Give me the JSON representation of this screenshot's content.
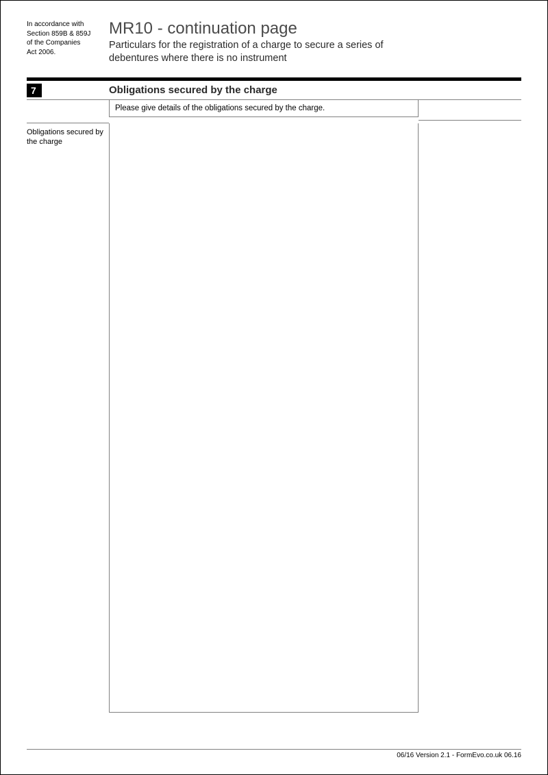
{
  "header": {
    "legal_note_line1": "In accordance with",
    "legal_note_line2": "Section 859B & 859J",
    "legal_note_line3": "of the Companies",
    "legal_note_line4": "Act 2006.",
    "title": "MR10 - continuation page",
    "subtitle": "Particulars for the registration of a charge to secure a series of debentures where there is no instrument"
  },
  "section": {
    "number": "7",
    "title": "Obligations secured by the charge",
    "instruction": "Please give details of the obligations secured by the charge.",
    "side_label": "Obligations secured by the charge",
    "textarea_value": ""
  },
  "footer": {
    "text": "06/16 Version 2.1 - FormEvo.co.uk 06.16"
  },
  "colors": {
    "page_border": "#000000",
    "rule_thick": "#000000",
    "rule_thin": "#808080",
    "title_gray": "#4a4a4a",
    "text": "#000000"
  }
}
